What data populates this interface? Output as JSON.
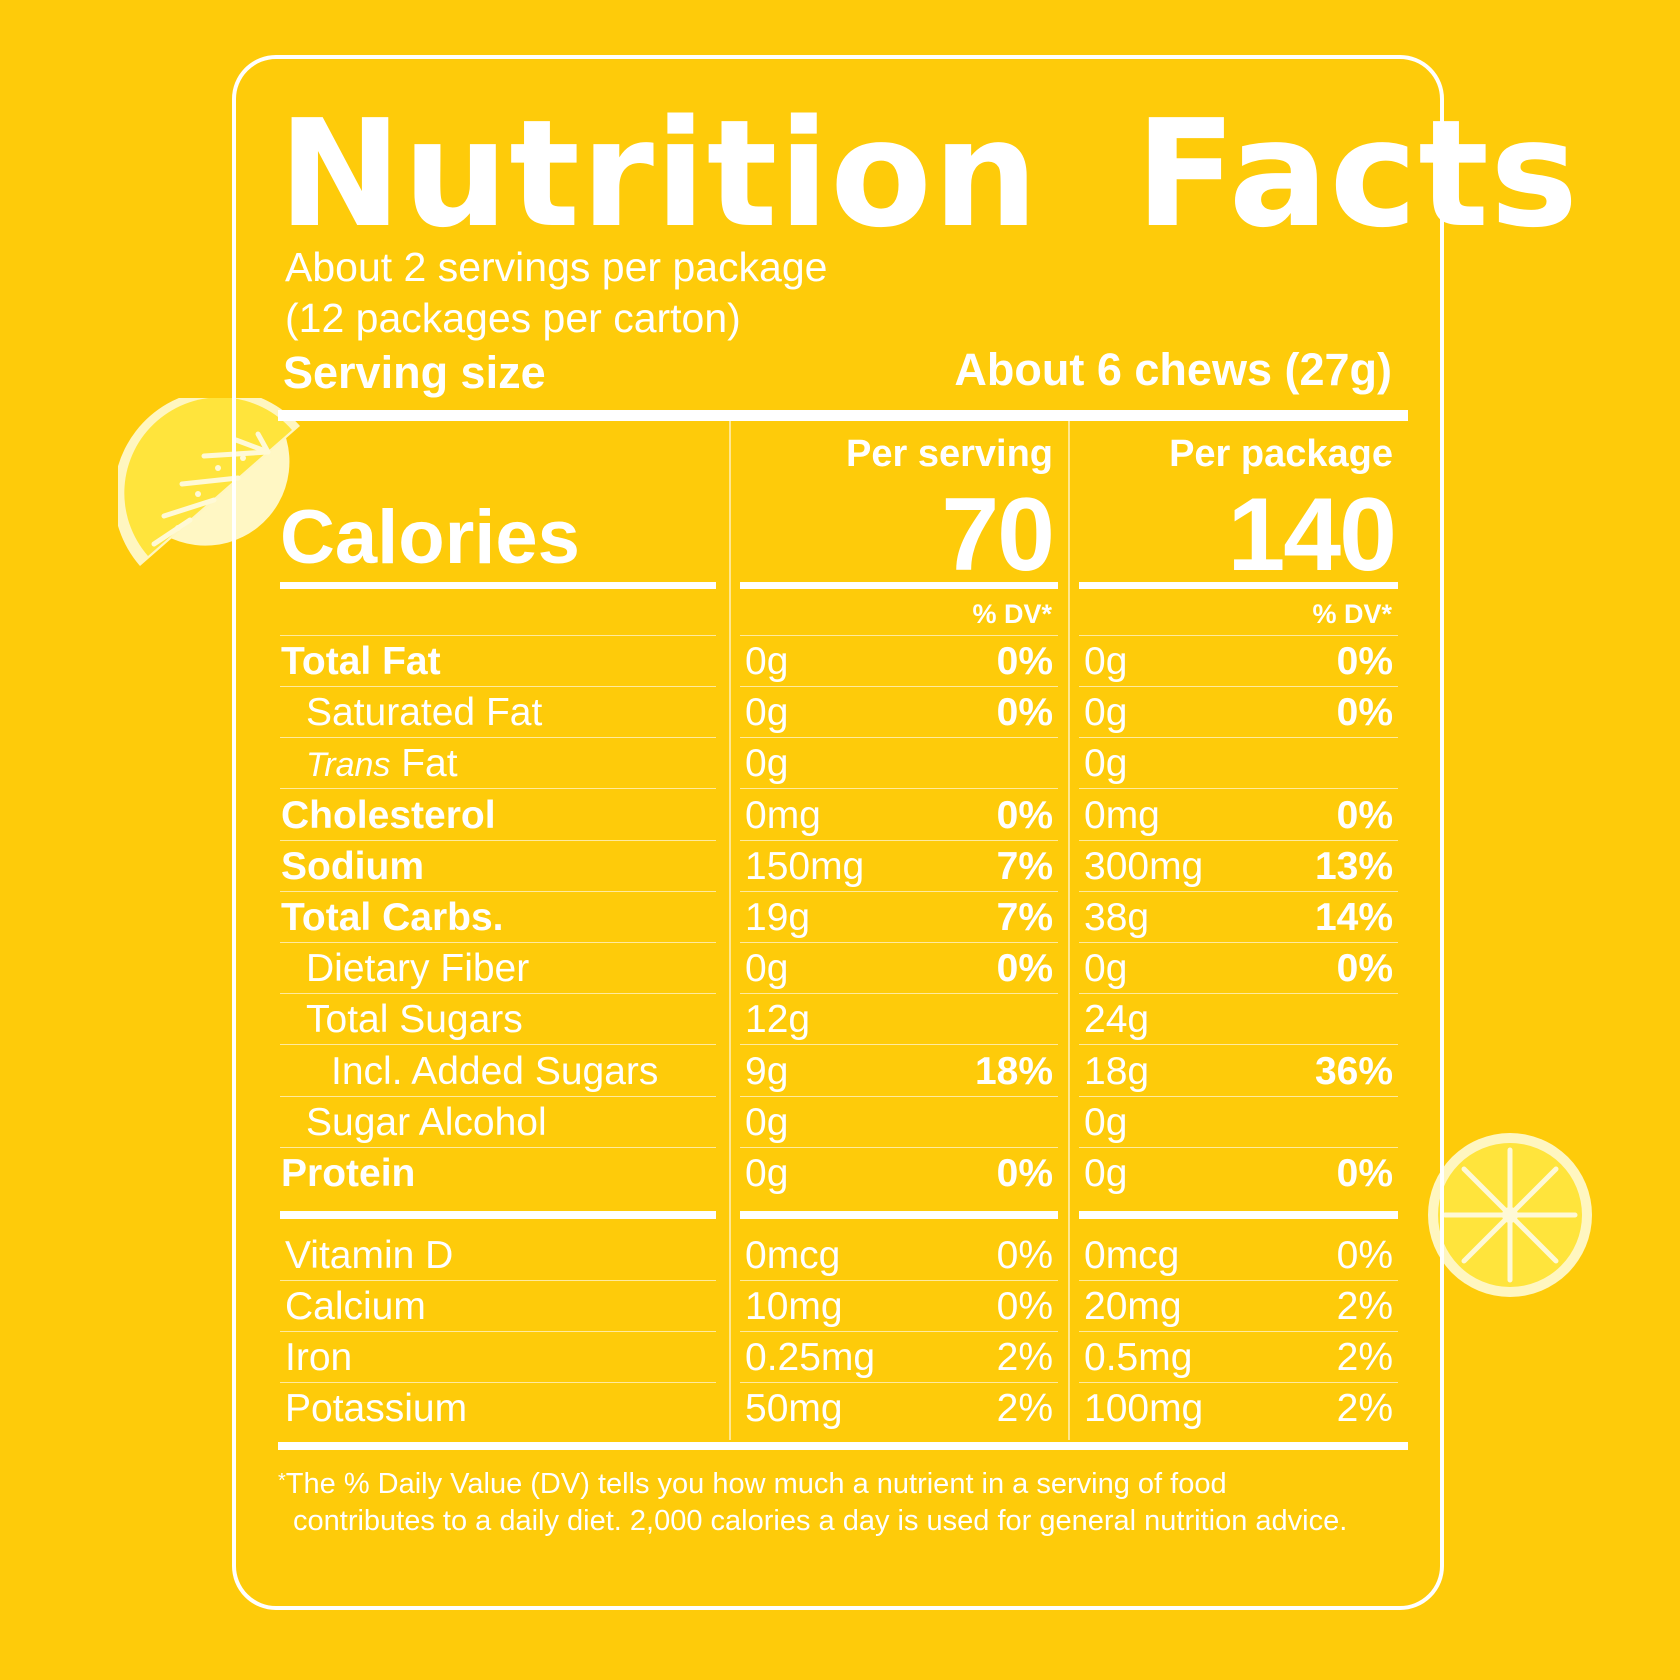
{
  "title": {
    "word1": "Nutrition",
    "word2": "Facts"
  },
  "servings_per_package": "About 2 servings per package",
  "packages_per_carton": "(12 packages per carton)",
  "serving_size": {
    "label": "Serving size",
    "value": "About 6 chews (27g)"
  },
  "columns": {
    "per_serving": {
      "header": "Per serving",
      "calories": "70",
      "dv_header": "% DV*"
    },
    "per_package": {
      "header": "Per package",
      "calories": "140",
      "dv_header": "% DV*"
    }
  },
  "calories_label": "Calories",
  "nutrients": [
    {
      "label": "Total Fat",
      "serving_amount": "0g",
      "serving_dv": "0%",
      "package_amount": "0g",
      "package_dv": "0%"
    },
    {
      "label": "Saturated Fat",
      "serving_amount": "0g",
      "serving_dv": "0%",
      "package_amount": "0g",
      "package_dv": "0%"
    },
    {
      "label_italic": "Trans",
      "label": "Fat",
      "serving_amount": "0g",
      "serving_dv": "",
      "package_amount": "0g",
      "package_dv": ""
    },
    {
      "label": "Cholesterol",
      "serving_amount": "0mg",
      "serving_dv": "0%",
      "package_amount": "0mg",
      "package_dv": "0%"
    },
    {
      "label": "Sodium",
      "serving_amount": "150mg",
      "serving_dv": "7%",
      "package_amount": "300mg",
      "package_dv": "13%"
    },
    {
      "label": "Total Carbs.",
      "serving_amount": "19g",
      "serving_dv": "7%",
      "package_amount": "38g",
      "package_dv": "14%"
    },
    {
      "label": "Dietary Fiber",
      "serving_amount": "0g",
      "serving_dv": "0%",
      "package_amount": "0g",
      "package_dv": "0%"
    },
    {
      "label": "Total Sugars",
      "serving_amount": "12g",
      "serving_dv": "",
      "package_amount": "24g",
      "package_dv": ""
    },
    {
      "label": "Incl. Added Sugars",
      "serving_amount": "9g",
      "serving_dv": "18%",
      "package_amount": "18g",
      "package_dv": "36%"
    },
    {
      "label": "Sugar Alcohol",
      "serving_amount": "0g",
      "serving_dv": "",
      "package_amount": "0g",
      "package_dv": ""
    },
    {
      "label": "Protein",
      "serving_amount": "0g",
      "serving_dv": "0%",
      "package_amount": "0g",
      "package_dv": "0%"
    }
  ],
  "vitamins": [
    {
      "label": "Vitamin D",
      "serving_amount": "0mcg",
      "serving_dv": "0%",
      "package_amount": "0mcg",
      "package_dv": "0%"
    },
    {
      "label": "Calcium",
      "serving_amount": "10mg",
      "serving_dv": "0%",
      "package_amount": "20mg",
      "package_dv": "2%"
    },
    {
      "label": "Iron",
      "serving_amount": "0.25mg",
      "serving_dv": "2%",
      "package_amount": "0.5mg",
      "package_dv": "2%"
    },
    {
      "label": "Potassium",
      "serving_amount": "50mg",
      "serving_dv": "2%",
      "package_amount": "100mg",
      "package_dv": "2%"
    }
  ],
  "footnote": {
    "star": "*",
    "line1": "The % Daily Value (DV) tells you how much a nutrient in a serving of food",
    "line2": "contributes to a daily diet. 2,000 calories a day is used for general nutrition advice."
  },
  "colors": {
    "background": "#fecb0a",
    "text": "#ffffff",
    "lemon": "#ffe03a"
  },
  "icons": [
    "lemon-wedge-icon",
    "lemon-slice-icon"
  ]
}
